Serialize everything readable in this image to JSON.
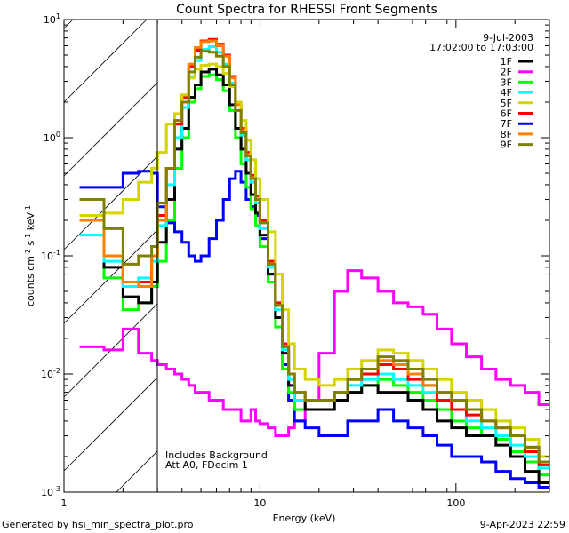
{
  "chart_data": {
    "type": "line",
    "title": "Count Spectra for RHESSI Front Segments",
    "xlabel": "Energy (keV)",
    "ylabel": "counts cm-2 s-1 keV-1",
    "xscale": "log",
    "yscale": "log",
    "xlim": [
      1,
      300
    ],
    "ylim": [
      0.001,
      10
    ],
    "x_tick_labels": [
      "1",
      "10",
      "100"
    ],
    "x_tick_values": [
      1,
      10,
      100
    ],
    "y_tick_labels": [
      {
        "base": "10",
        "exp": "1",
        "value": 10
      },
      {
        "base": "10",
        "exp": "0",
        "value": 1
      },
      {
        "base": "10",
        "exp": "-1",
        "value": 0.1
      },
      {
        "base": "10",
        "exp": "-2",
        "value": 0.01
      },
      {
        "base": "10",
        "exp": "-3",
        "value": 0.001
      }
    ],
    "ylabel_parts": {
      "main": "counts cm",
      "e1": "-2",
      "mid": " s",
      "e2": "-1",
      "mid2": " keV",
      "e3": "-1"
    },
    "date": "9-Jul-2003",
    "time_range": "17:02:00 to 17:03:00",
    "shaded_region_keV": [
      1,
      3
    ],
    "annotations": [
      "Includes Background",
      "Att A0, FDecim 1"
    ],
    "legend_position": "top-right",
    "energy_edges": [
      1.2,
      1.6,
      2.0,
      2.4,
      2.8,
      3.0,
      3.33,
      3.67,
      4.0,
      4.33,
      4.67,
      5.0,
      5.5,
      6.0,
      6.5,
      7.0,
      7.5,
      8.0,
      8.5,
      9.0,
      9.5,
      10,
      11,
      12,
      13,
      14,
      15,
      17,
      20,
      24,
      28,
      33,
      40,
      48,
      57,
      68,
      80,
      95,
      113,
      135,
      160,
      190,
      225,
      265,
      300
    ],
    "series": [
      {
        "name": "2F",
        "color": "#ff00ff",
        "values": [
          0.017,
          0.016,
          0.024,
          0.015,
          0.013,
          0.012,
          0.011,
          0.01,
          0.009,
          0.008,
          0.007,
          0.007,
          0.006,
          0.006,
          0.005,
          0.005,
          0.005,
          0.004,
          0.004,
          0.005,
          0.004,
          0.0038,
          0.0035,
          0.003,
          0.003,
          0.0035,
          0.004,
          0.006,
          0.015,
          0.05,
          0.075,
          0.065,
          0.05,
          0.04,
          0.037,
          0.032,
          0.024,
          0.018,
          0.014,
          0.011,
          0.009,
          0.008,
          0.007,
          0.0055
        ]
      },
      {
        "name": "7F",
        "color": "#0000ff",
        "values": [
          0.38,
          0.38,
          0.5,
          0.52,
          0.5,
          0.26,
          0.19,
          0.16,
          0.13,
          0.1,
          0.09,
          0.1,
          0.14,
          0.2,
          0.3,
          0.45,
          0.52,
          0.42,
          0.3,
          0.26,
          0.22,
          0.14,
          0.07,
          0.03,
          0.012,
          0.006,
          0.004,
          0.0035,
          0.003,
          0.003,
          0.004,
          0.004,
          0.005,
          0.004,
          0.0035,
          0.003,
          0.0025,
          0.002,
          0.002,
          0.0018,
          0.0015,
          0.0013,
          0.0012,
          0.0011
        ]
      },
      {
        "name": "3F",
        "color": "#00ff00",
        "values": [
          0.2,
          0.065,
          0.035,
          0.04,
          0.055,
          0.09,
          0.2,
          0.55,
          1.0,
          2.0,
          2.6,
          3.3,
          3.4,
          3.1,
          2.5,
          1.7,
          1.0,
          0.6,
          0.38,
          0.25,
          0.18,
          0.12,
          0.06,
          0.025,
          0.011,
          0.007,
          0.005,
          0.005,
          0.005,
          0.006,
          0.007,
          0.008,
          0.009,
          0.008,
          0.007,
          0.006,
          0.005,
          0.004,
          0.0035,
          0.003,
          0.0028,
          0.0022,
          0.0018,
          0.0014
        ]
      },
      {
        "name": "1F",
        "color": "#000000",
        "values": [
          0.2,
          0.08,
          0.045,
          0.04,
          0.06,
          0.13,
          0.3,
          0.8,
          1.2,
          2.2,
          2.8,
          3.6,
          3.8,
          3.4,
          2.8,
          1.9,
          1.2,
          0.8,
          0.5,
          0.33,
          0.23,
          0.15,
          0.07,
          0.03,
          0.015,
          0.008,
          0.006,
          0.005,
          0.005,
          0.006,
          0.007,
          0.008,
          0.007,
          0.007,
          0.006,
          0.005,
          0.004,
          0.0035,
          0.003,
          0.003,
          0.0025,
          0.002,
          0.0015,
          0.0012
        ]
      },
      {
        "name": "4F",
        "color": "#00ffff",
        "values": [
          0.15,
          0.09,
          0.055,
          0.065,
          0.09,
          0.18,
          0.4,
          1.0,
          1.8,
          3.3,
          4.5,
          5.6,
          5.9,
          5.3,
          4.2,
          2.9,
          1.7,
          1.05,
          0.65,
          0.42,
          0.28,
          0.17,
          0.08,
          0.035,
          0.016,
          0.009,
          0.006,
          0.006,
          0.006,
          0.007,
          0.008,
          0.009,
          0.01,
          0.009,
          0.008,
          0.007,
          0.006,
          0.005,
          0.004,
          0.0035,
          0.003,
          0.0025,
          0.002,
          0.0016
        ]
      },
      {
        "name": "6F",
        "color": "#ff0000",
        "values": [
          0.22,
          0.1,
          0.06,
          0.06,
          0.1,
          0.22,
          0.55,
          1.3,
          2.2,
          4.0,
          5.5,
          6.6,
          6.8,
          6.2,
          5.0,
          3.3,
          2.0,
          1.2,
          0.75,
          0.48,
          0.32,
          0.2,
          0.09,
          0.04,
          0.018,
          0.01,
          0.007,
          0.006,
          0.006,
          0.007,
          0.009,
          0.01,
          0.012,
          0.011,
          0.009,
          0.008,
          0.006,
          0.005,
          0.0045,
          0.004,
          0.0035,
          0.003,
          0.0022,
          0.0017
        ]
      },
      {
        "name": "8F",
        "color": "#ff8000",
        "values": [
          0.2,
          0.1,
          0.06,
          0.055,
          0.1,
          0.2,
          0.55,
          1.4,
          2.3,
          4.2,
          5.8,
          6.5,
          6.6,
          6.0,
          4.9,
          3.2,
          1.9,
          1.15,
          0.72,
          0.46,
          0.3,
          0.19,
          0.085,
          0.038,
          0.017,
          0.01,
          0.007,
          0.006,
          0.006,
          0.007,
          0.009,
          0.011,
          0.013,
          0.012,
          0.01,
          0.008,
          0.007,
          0.006,
          0.005,
          0.004,
          0.0035,
          0.003,
          0.0024,
          0.0018
        ]
      },
      {
        "name": "5F",
        "color": "#d4d400",
        "values": [
          0.22,
          0.23,
          0.3,
          0.42,
          0.55,
          0.75,
          1.3,
          1.6,
          2.3,
          3.2,
          3.8,
          4.1,
          4.2,
          4.0,
          3.5,
          2.7,
          2.0,
          1.4,
          0.95,
          0.65,
          0.45,
          0.3,
          0.16,
          0.07,
          0.035,
          0.018,
          0.011,
          0.009,
          0.008,
          0.009,
          0.011,
          0.013,
          0.016,
          0.015,
          0.013,
          0.011,
          0.009,
          0.007,
          0.006,
          0.005,
          0.004,
          0.0035,
          0.0028,
          0.002
        ]
      },
      {
        "name": "9F",
        "color": "#808000",
        "values": [
          0.3,
          0.17,
          0.085,
          0.1,
          0.12,
          0.28,
          0.55,
          1.4,
          2.0,
          3.6,
          4.8,
          5.4,
          5.3,
          4.9,
          4.0,
          2.8,
          1.7,
          1.1,
          0.7,
          0.45,
          0.3,
          0.19,
          0.085,
          0.038,
          0.017,
          0.01,
          0.007,
          0.006,
          0.006,
          0.007,
          0.009,
          0.011,
          0.014,
          0.013,
          0.011,
          0.009,
          0.007,
          0.006,
          0.005,
          0.004,
          0.0035,
          0.003,
          0.0024,
          0.0018
        ]
      }
    ],
    "legend": [
      {
        "name": "1F",
        "color": "#000000"
      },
      {
        "name": "2F",
        "color": "#ff00ff"
      },
      {
        "name": "3F",
        "color": "#00ff00"
      },
      {
        "name": "4F",
        "color": "#00ffff"
      },
      {
        "name": "5F",
        "color": "#d4d400"
      },
      {
        "name": "6F",
        "color": "#ff0000"
      },
      {
        "name": "7F",
        "color": "#0000ff"
      },
      {
        "name": "8F",
        "color": "#ff8000"
      },
      {
        "name": "9F",
        "color": "#808000"
      }
    ]
  },
  "footer": {
    "generated_by": "Generated by hsi_min_spectra_plot.pro",
    "timestamp": "9-Apr-2023 22:59"
  }
}
